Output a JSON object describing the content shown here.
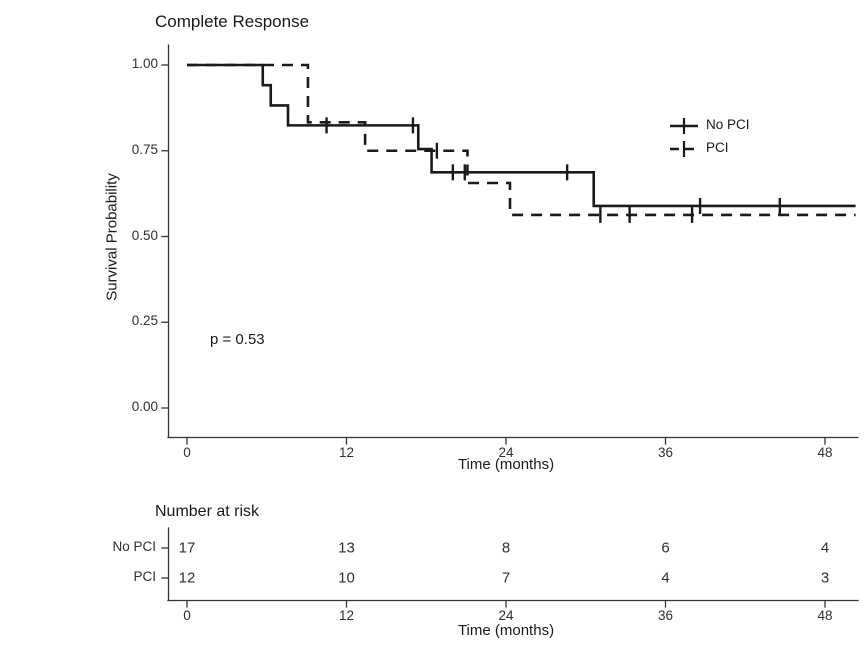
{
  "colors": {
    "curve": "#1a1a1a",
    "axis": "#333333",
    "text": "#303030"
  },
  "chart_data": {
    "type": "line",
    "subtype": "kaplan-meier-survival",
    "title": "Complete Response",
    "xlabel": "Time (months)",
    "ylabel": "Survival Probability",
    "xlim": [
      0,
      50.5
    ],
    "ylim": [
      0.0,
      1.0
    ],
    "xticks": [
      0,
      12,
      24,
      36,
      48
    ],
    "yticks": [
      1.0,
      0.75,
      0.5,
      0.25,
      0.0
    ],
    "grid": false,
    "pvalue": "p = 0.53",
    "legend_position": "inside-right",
    "legend": [
      {
        "name": "No PCI",
        "style": "solid"
      },
      {
        "name": "PCI",
        "style": "dashed"
      }
    ],
    "series": [
      {
        "name": "No PCI",
        "style": "solid",
        "steps": [
          [
            0,
            1.0
          ],
          [
            5.7,
            0.941
          ],
          [
            6.3,
            0.882
          ],
          [
            7.6,
            0.824
          ],
          [
            17.4,
            0.755
          ],
          [
            18.4,
            0.687
          ],
          [
            30.6,
            0.589
          ],
          [
            50.3,
            0.589
          ]
        ],
        "censors": [
          [
            10.5,
            0.824
          ],
          [
            17.0,
            0.824
          ],
          [
            20.0,
            0.687
          ],
          [
            20.9,
            0.687
          ],
          [
            28.6,
            0.687
          ],
          [
            38.6,
            0.589
          ],
          [
            44.6,
            0.589
          ]
        ]
      },
      {
        "name": "PCI",
        "style": "dashed",
        "steps": [
          [
            0,
            1.0
          ],
          [
            9.1,
            0.833
          ],
          [
            13.4,
            0.75
          ],
          [
            21.1,
            0.656
          ],
          [
            24.3,
            0.563
          ],
          [
            50.3,
            0.563
          ]
        ],
        "censors": [
          [
            18.8,
            0.75
          ],
          [
            31.1,
            0.563
          ],
          [
            33.3,
            0.563
          ],
          [
            38.0,
            0.563
          ]
        ]
      }
    ],
    "risk_table": {
      "title": "Number at risk",
      "xlabel": "Time (months)",
      "times": [
        0,
        12,
        24,
        36,
        48
      ],
      "rows": [
        {
          "label": "No PCI",
          "values": [
            17,
            13,
            8,
            6,
            4
          ]
        },
        {
          "label": "PCI",
          "values": [
            12,
            10,
            7,
            4,
            3
          ]
        }
      ]
    }
  }
}
